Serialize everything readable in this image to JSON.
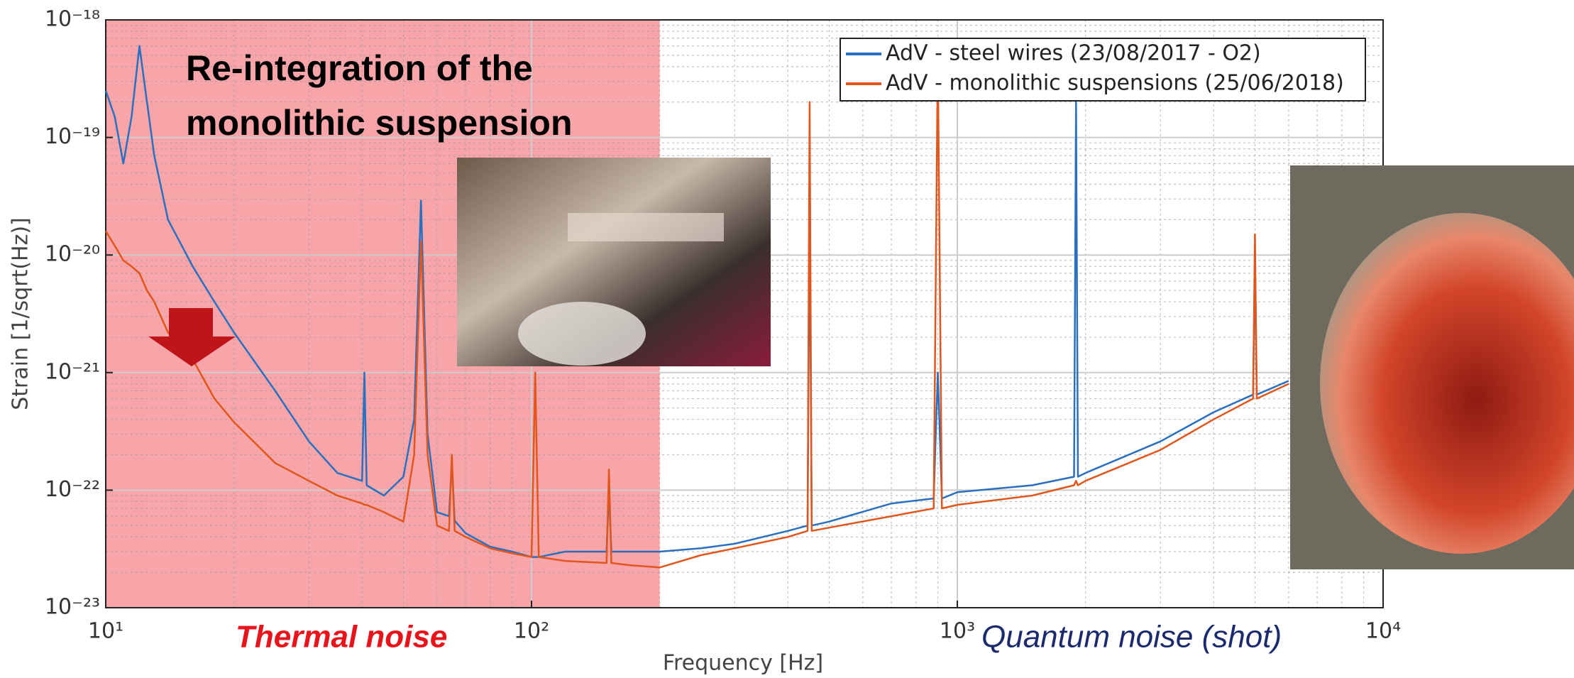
{
  "chart_data": {
    "type": "line",
    "annotations": [
      "Re-integration of the",
      "monolithic suspension",
      "Thermal noise",
      "Quantum noise (shot)"
    ],
    "xlabel": "Frequency [Hz]",
    "ylabel": "Strain [1/sqrt(Hz)]",
    "xscale": "log",
    "yscale": "log",
    "grid": true,
    "minor_grid": true,
    "legend": "upper right",
    "highlight": {
      "x": [
        10,
        200
      ],
      "color": "#f7a5a8"
    },
    "xlim": [
      10,
      10000
    ],
    "ylim": [
      1e-23,
      1e-18
    ],
    "xticks": [
      {
        "value": 10,
        "label": "10¹"
      },
      {
        "value": 100,
        "label": "10²"
      },
      {
        "value": 1000,
        "label": "10³"
      },
      {
        "value": 10000,
        "label": "10⁴"
      }
    ],
    "yticks": [
      {
        "value": 1e-23,
        "label": "10⁻²³"
      },
      {
        "value": 1e-22,
        "label": "10⁻²²"
      },
      {
        "value": 1e-21,
        "label": "10⁻²¹"
      },
      {
        "value": 1e-20,
        "label": "10⁻²⁰"
      },
      {
        "value": 1e-19,
        "label": "10⁻¹⁹"
      },
      {
        "value": 1e-18,
        "label": "10⁻¹⁸"
      }
    ],
    "x": [
      10,
      10.5,
      11,
      11.5,
      12,
      12.5,
      13,
      14,
      16,
      18,
      20,
      25,
      30,
      35,
      40,
      40.5,
      41,
      45,
      50,
      53,
      55,
      57,
      60,
      64,
      65,
      66,
      70,
      80,
      90,
      100,
      102,
      104,
      120,
      150,
      152,
      154,
      170,
      200,
      250,
      300,
      400,
      445,
      450,
      455,
      500,
      700,
      880,
      900,
      920,
      1000,
      1500,
      1880,
      1900,
      1920,
      2000,
      3000,
      4000,
      4950,
      5000,
      5050,
      6000
    ],
    "series": [
      {
        "name": "AdV - steel wires (23/08/2017 - O2)",
        "color": "#2a6fc0",
        "values": [
          2.5e-19,
          1.5e-19,
          6e-20,
          1.5e-19,
          6e-19,
          2e-19,
          7e-20,
          2e-20,
          8e-21,
          4e-21,
          2.2e-21,
          7e-22,
          2.6e-22,
          1.4e-22,
          1.2e-22,
          1e-21,
          1.1e-22,
          9e-23,
          1.3e-22,
          4e-22,
          2.9e-20,
          3e-22,
          6.5e-23,
          6e-23,
          1.7e-22,
          5.5e-23,
          4.3e-23,
          3.3e-23,
          3e-23,
          2.7e-23,
          2.7e-23,
          2.7e-23,
          3e-23,
          3e-23,
          1e-22,
          3e-23,
          3e-23,
          3e-23,
          3.2e-23,
          3.5e-23,
          4.5e-23,
          5e-23,
          3e-20,
          5e-23,
          5.4e-23,
          7.7e-23,
          8.5e-23,
          1e-21,
          8.5e-23,
          9.6e-23,
          1.1e-22,
          1.3e-22,
          2e-19,
          1.3e-22,
          1.4e-22,
          2.6e-22,
          4.6e-22,
          6.5e-22,
          1e-20,
          6.5e-22,
          8.5e-22
        ]
      },
      {
        "name": "AdV - monolithic suspensions (25/06/2018)",
        "color": "#e0561c",
        "values": [
          1.6e-20,
          1.2e-20,
          9e-21,
          8e-21,
          7e-21,
          5e-21,
          4e-21,
          2.2e-21,
          1.3e-21,
          6e-22,
          3.8e-22,
          1.7e-22,
          1.2e-22,
          9e-23,
          7.7e-23,
          7.5e-23,
          7.5e-23,
          6.5e-23,
          5.4e-23,
          2e-22,
          1.3e-20,
          2e-22,
          5e-23,
          4.5e-23,
          2e-22,
          4.5e-23,
          4e-23,
          3.2e-23,
          2.9e-23,
          2.7e-23,
          1e-21,
          2.7e-23,
          2.5e-23,
          2.4e-23,
          1.5e-22,
          2.4e-23,
          2.3e-23,
          2.2e-23,
          2.8e-23,
          3.2e-23,
          4e-23,
          4.5e-23,
          2e-19,
          4.5e-23,
          4.8e-23,
          6e-23,
          7e-23,
          5e-19,
          7e-23,
          7.5e-23,
          9e-23,
          1.1e-22,
          1.2e-22,
          1.1e-22,
          1.2e-22,
          2.2e-22,
          4e-22,
          6e-22,
          1.5e-20,
          6e-22,
          8e-22
        ]
      }
    ]
  }
}
